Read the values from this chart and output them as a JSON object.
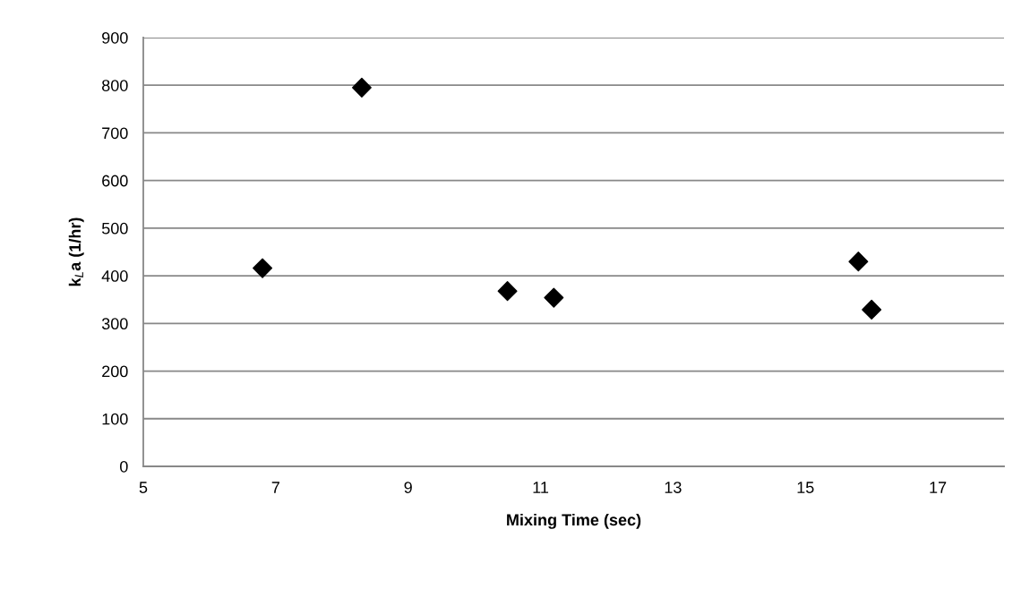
{
  "chart_data": {
    "type": "scatter",
    "xlabel": "Mixing Time (sec)",
    "ylabel": "k$_{L}$a (1/hr)",
    "x": [
      6.8,
      8.3,
      10.5,
      11.2,
      15.8,
      16.0
    ],
    "series": [
      {
        "color": "#000000",
        "values": [
          416,
          795,
          368,
          354,
          430,
          329
        ]
      }
    ],
    "xlim": [
      5,
      18
    ],
    "xticks": [
      5,
      7,
      9,
      11,
      13,
      15,
      17
    ],
    "ylim": [
      0,
      900
    ],
    "yticks": [
      0,
      100,
      200,
      300,
      400,
      500,
      600,
      700,
      800,
      900
    ],
    "grid": "y",
    "marker": "diamond",
    "legend": false
  }
}
